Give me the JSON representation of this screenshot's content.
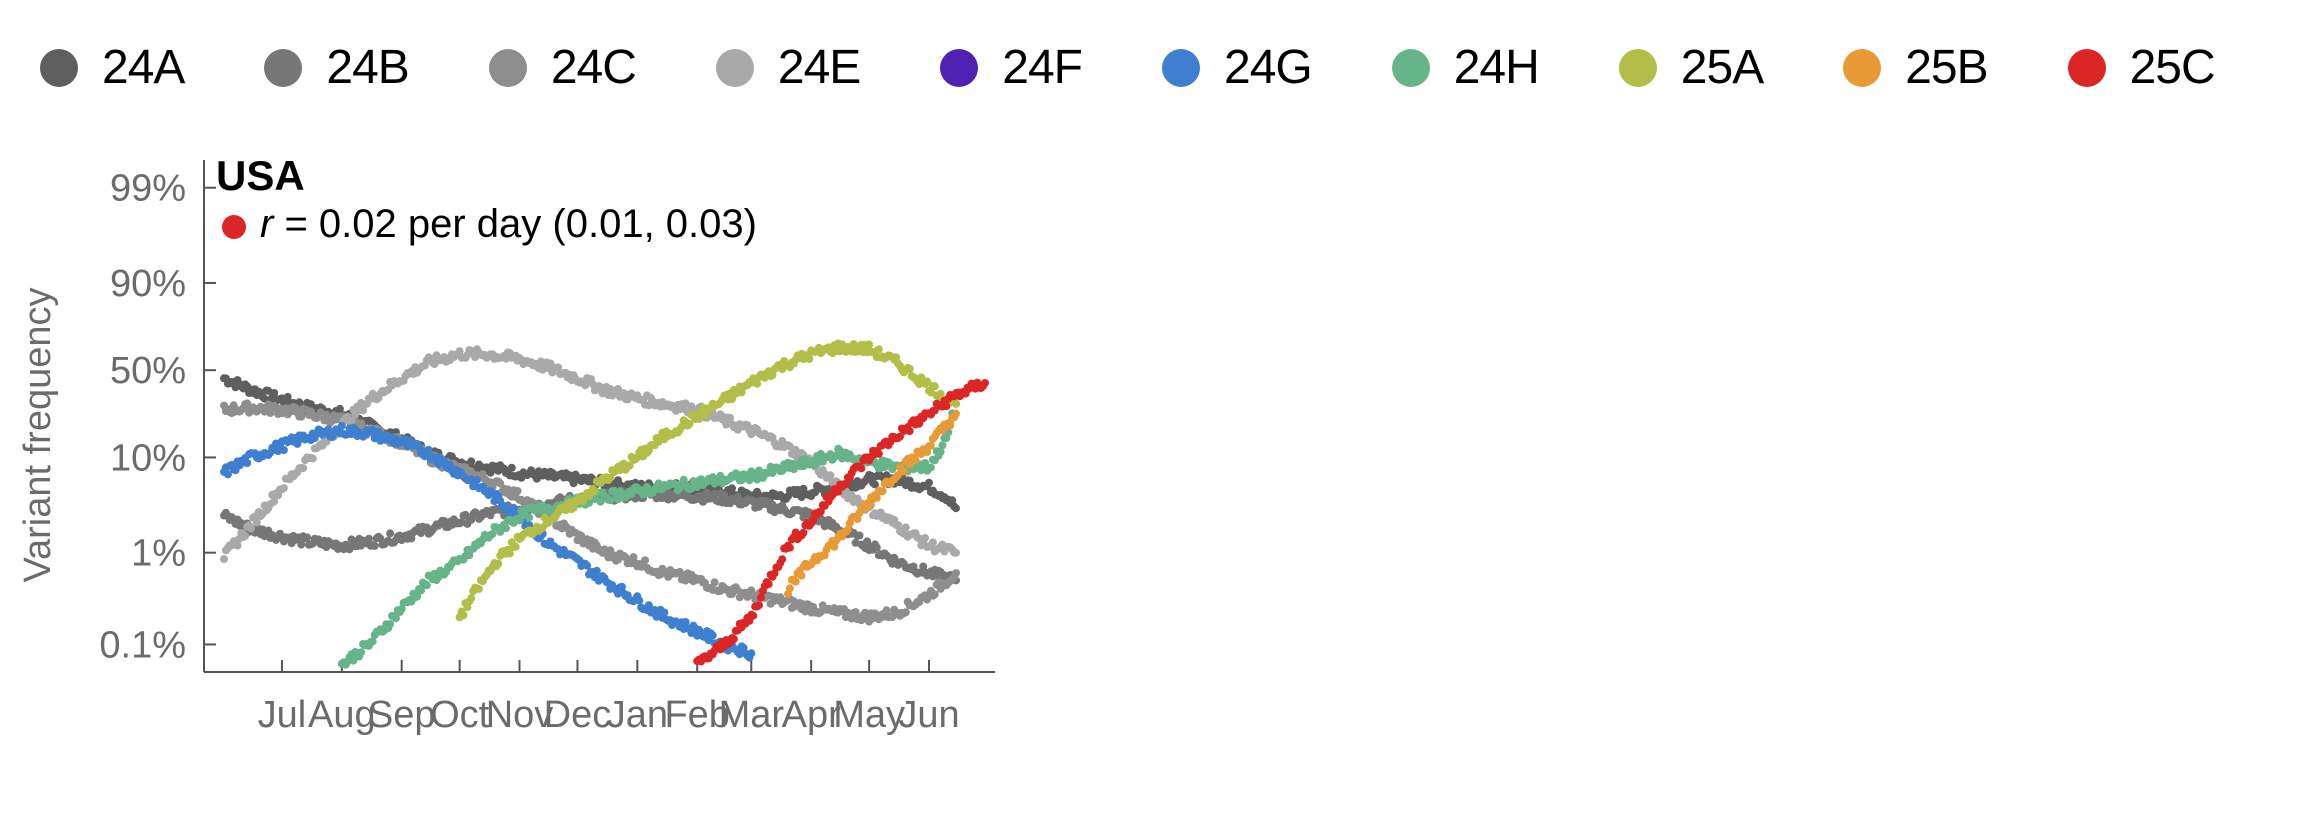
{
  "legend": [
    {
      "label": "24A",
      "color": "#5f5f5f"
    },
    {
      "label": "24B",
      "color": "#777777"
    },
    {
      "label": "24C",
      "color": "#8e8e8e"
    },
    {
      "label": "24E",
      "color": "#a9a9a9"
    },
    {
      "label": "24F",
      "color": "#4f22b4"
    },
    {
      "label": "24G",
      "color": "#3f7fd0"
    },
    {
      "label": "24H",
      "color": "#67b48a"
    },
    {
      "label": "25A",
      "color": "#b2be48"
    },
    {
      "label": "25B",
      "color": "#e89a36"
    },
    {
      "label": "25C",
      "color": "#dc2626"
    }
  ],
  "chart_data": {
    "type": "scatter",
    "title": "USA",
    "annotation": {
      "symbol": "r",
      "text": " = 0.02 per day (0.01, 0.03)",
      "color": "#dc2626"
    },
    "ylabel": "Variant frequency",
    "xlabel": "",
    "y_scale": "logit",
    "y_ticks": [
      {
        "value": 0.001,
        "label": "0.1%"
      },
      {
        "value": 0.01,
        "label": "1%"
      },
      {
        "value": 0.1,
        "label": "10%"
      },
      {
        "value": 0.5,
        "label": "50%"
      },
      {
        "value": 0.9,
        "label": "90%"
      },
      {
        "value": 0.99,
        "label": "99%"
      }
    ],
    "x_ticks": [
      {
        "value": "2024-07-01",
        "label": "Jul"
      },
      {
        "value": "2024-08-01",
        "label": "Aug"
      },
      {
        "value": "2024-09-01",
        "label": "Sep"
      },
      {
        "value": "2024-10-01",
        "label": "Oct"
      },
      {
        "value": "2024-11-01",
        "label": "Nov"
      },
      {
        "value": "2024-12-01",
        "label": "Dec"
      },
      {
        "value": "2025-01-01",
        "label": "Jan"
      },
      {
        "value": "2025-02-01",
        "label": "Feb"
      },
      {
        "value": "2025-03-01",
        "label": "Mar"
      },
      {
        "value": "2025-04-01",
        "label": "Apr"
      },
      {
        "value": "2025-05-01",
        "label": "May"
      },
      {
        "value": "2025-06-01",
        "label": "Jun"
      }
    ],
    "xlim": [
      "2024-06-01",
      "2025-06-30"
    ],
    "ylim": [
      0.0005,
      0.995
    ],
    "grid": false,
    "series": [
      {
        "name": "24A",
        "color": "#5f5f5f",
        "points": [
          [
            "2024-06-01",
            0.45
          ],
          [
            "2024-06-15",
            0.38
          ],
          [
            "2024-07-01",
            0.32
          ],
          [
            "2024-07-15",
            0.28
          ],
          [
            "2024-08-01",
            0.25
          ],
          [
            "2024-08-15",
            0.2
          ],
          [
            "2024-09-01",
            0.15
          ],
          [
            "2024-09-15",
            0.11
          ],
          [
            "2024-10-01",
            0.09
          ],
          [
            "2024-10-15",
            0.08
          ],
          [
            "2024-11-01",
            0.07
          ],
          [
            "2024-11-15",
            0.065
          ],
          [
            "2024-12-01",
            0.06
          ],
          [
            "2024-12-15",
            0.055
          ],
          [
            "2025-01-01",
            0.05
          ],
          [
            "2025-01-15",
            0.05
          ],
          [
            "2025-02-01",
            0.05
          ],
          [
            "2025-02-15",
            0.045
          ],
          [
            "2025-03-01",
            0.04
          ],
          [
            "2025-03-15",
            0.04
          ],
          [
            "2025-04-01",
            0.045
          ],
          [
            "2025-04-15",
            0.05
          ],
          [
            "2025-05-01",
            0.06
          ],
          [
            "2025-05-15",
            0.06
          ],
          [
            "2025-06-01",
            0.05
          ],
          [
            "2025-06-10",
            0.04
          ],
          [
            "2025-06-15",
            0.03
          ]
        ]
      },
      {
        "name": "24B",
        "color": "#777777",
        "points": [
          [
            "2024-06-01",
            0.025
          ],
          [
            "2024-06-15",
            0.018
          ],
          [
            "2024-07-01",
            0.015
          ],
          [
            "2024-07-15",
            0.013
          ],
          [
            "2024-08-01",
            0.012
          ],
          [
            "2024-08-15",
            0.013
          ],
          [
            "2024-09-01",
            0.015
          ],
          [
            "2024-09-15",
            0.018
          ],
          [
            "2024-10-01",
            0.022
          ],
          [
            "2024-10-15",
            0.026
          ],
          [
            "2024-11-01",
            0.03
          ],
          [
            "2024-11-15",
            0.033
          ],
          [
            "2024-12-01",
            0.038
          ],
          [
            "2024-12-15",
            0.04
          ],
          [
            "2025-01-01",
            0.042
          ],
          [
            "2025-01-15",
            0.042
          ],
          [
            "2025-02-01",
            0.04
          ],
          [
            "2025-02-15",
            0.038
          ],
          [
            "2025-03-01",
            0.034
          ],
          [
            "2025-03-15",
            0.03
          ],
          [
            "2025-04-01",
            0.025
          ],
          [
            "2025-04-15",
            0.018
          ],
          [
            "2025-05-01",
            0.012
          ],
          [
            "2025-05-15",
            0.008
          ],
          [
            "2025-06-01",
            0.006
          ],
          [
            "2025-06-15",
            0.005
          ]
        ]
      },
      {
        "name": "24C",
        "color": "#8e8e8e",
        "points": [
          [
            "2024-06-01",
            0.27
          ],
          [
            "2024-06-15",
            0.28
          ],
          [
            "2024-07-01",
            0.27
          ],
          [
            "2024-07-15",
            0.25
          ],
          [
            "2024-08-01",
            0.22
          ],
          [
            "2024-08-15",
            0.18
          ],
          [
            "2024-09-01",
            0.14
          ],
          [
            "2024-09-15",
            0.1
          ],
          [
            "2024-10-01",
            0.075
          ],
          [
            "2024-10-15",
            0.06
          ],
          [
            "2024-11-01",
            0.04
          ],
          [
            "2024-11-15",
            0.025
          ],
          [
            "2024-12-01",
            0.015
          ],
          [
            "2024-12-15",
            0.01
          ],
          [
            "2025-01-01",
            0.008
          ],
          [
            "2025-01-15",
            0.006
          ],
          [
            "2025-02-01",
            0.005
          ],
          [
            "2025-02-15",
            0.004
          ],
          [
            "2025-03-01",
            0.0035
          ],
          [
            "2025-03-15",
            0.003
          ],
          [
            "2025-04-01",
            0.0025
          ],
          [
            "2025-04-15",
            0.0022
          ],
          [
            "2025-05-01",
            0.002
          ],
          [
            "2025-05-15",
            0.0022
          ],
          [
            "2025-06-01",
            0.0035
          ],
          [
            "2025-06-15",
            0.006
          ]
        ]
      },
      {
        "name": "24E",
        "color": "#a9a9a9",
        "points": [
          [
            "2024-06-01",
            0.009
          ],
          [
            "2024-06-15",
            0.02
          ],
          [
            "2024-07-01",
            0.05
          ],
          [
            "2024-07-15",
            0.1
          ],
          [
            "2024-08-01",
            0.2
          ],
          [
            "2024-08-15",
            0.32
          ],
          [
            "2024-09-01",
            0.45
          ],
          [
            "2024-09-15",
            0.55
          ],
          [
            "2024-10-01",
            0.6
          ],
          [
            "2024-10-15",
            0.6
          ],
          [
            "2024-11-01",
            0.57
          ],
          [
            "2024-11-15",
            0.52
          ],
          [
            "2024-12-01",
            0.45
          ],
          [
            "2024-12-15",
            0.38
          ],
          [
            "2025-01-01",
            0.33
          ],
          [
            "2025-01-15",
            0.3
          ],
          [
            "2025-02-01",
            0.27
          ],
          [
            "2025-02-15",
            0.22
          ],
          [
            "2025-03-01",
            0.18
          ],
          [
            "2025-03-15",
            0.14
          ],
          [
            "2025-04-01",
            0.09
          ],
          [
            "2025-04-15",
            0.05
          ],
          [
            "2025-05-01",
            0.03
          ],
          [
            "2025-05-15",
            0.02
          ],
          [
            "2025-06-01",
            0.012
          ],
          [
            "2025-06-15",
            0.01
          ]
        ]
      },
      {
        "name": "24G",
        "color": "#3f7fd0",
        "points": [
          [
            "2024-06-01",
            0.07
          ],
          [
            "2024-06-15",
            0.1
          ],
          [
            "2024-07-01",
            0.13
          ],
          [
            "2024-07-15",
            0.16
          ],
          [
            "2024-08-01",
            0.18
          ],
          [
            "2024-08-15",
            0.17
          ],
          [
            "2024-09-01",
            0.14
          ],
          [
            "2024-09-15",
            0.11
          ],
          [
            "2024-10-01",
            0.07
          ],
          [
            "2024-10-15",
            0.045
          ],
          [
            "2024-11-01",
            0.025
          ],
          [
            "2024-11-15",
            0.013
          ],
          [
            "2024-12-01",
            0.008
          ],
          [
            "2024-12-15",
            0.005
          ],
          [
            "2025-01-01",
            0.003
          ],
          [
            "2025-01-15",
            0.002
          ],
          [
            "2025-02-01",
            0.0014
          ],
          [
            "2025-02-15",
            0.001
          ],
          [
            "2025-03-01",
            0.0008
          ]
        ]
      },
      {
        "name": "24H",
        "color": "#67b48a",
        "points": [
          [
            "2024-08-01",
            0.0006
          ],
          [
            "2024-08-15",
            0.001
          ],
          [
            "2024-09-01",
            0.0025
          ],
          [
            "2024-09-15",
            0.005
          ],
          [
            "2024-10-01",
            0.008
          ],
          [
            "2024-10-15",
            0.015
          ],
          [
            "2024-11-01",
            0.025
          ],
          [
            "2024-11-15",
            0.03
          ],
          [
            "2024-12-01",
            0.035
          ],
          [
            "2024-12-15",
            0.04
          ],
          [
            "2025-01-01",
            0.045
          ],
          [
            "2025-01-15",
            0.05
          ],
          [
            "2025-02-01",
            0.055
          ],
          [
            "2025-02-15",
            0.06
          ],
          [
            "2025-03-01",
            0.065
          ],
          [
            "2025-03-15",
            0.075
          ],
          [
            "2025-04-01",
            0.09
          ],
          [
            "2025-04-15",
            0.11
          ],
          [
            "2025-05-01",
            0.09
          ],
          [
            "2025-05-15",
            0.08
          ],
          [
            "2025-06-01",
            0.08
          ],
          [
            "2025-06-10",
            0.15
          ],
          [
            "2025-06-15",
            0.3
          ]
        ]
      },
      {
        "name": "25A",
        "color": "#b2be48",
        "points": [
          [
            "2024-10-01",
            0.002
          ],
          [
            "2024-10-10",
            0.004
          ],
          [
            "2024-10-20",
            0.008
          ],
          [
            "2024-11-01",
            0.014
          ],
          [
            "2024-11-15",
            0.022
          ],
          [
            "2024-12-01",
            0.035
          ],
          [
            "2024-12-15",
            0.06
          ],
          [
            "2025-01-01",
            0.1
          ],
          [
            "2025-01-15",
            0.16
          ],
          [
            "2025-02-01",
            0.24
          ],
          [
            "2025-02-15",
            0.32
          ],
          [
            "2025-03-01",
            0.42
          ],
          [
            "2025-03-15",
            0.52
          ],
          [
            "2025-04-01",
            0.6
          ],
          [
            "2025-04-15",
            0.64
          ],
          [
            "2025-05-01",
            0.63
          ],
          [
            "2025-05-15",
            0.55
          ],
          [
            "2025-06-01",
            0.4
          ],
          [
            "2025-06-15",
            0.3
          ]
        ]
      },
      {
        "name": "25B",
        "color": "#e89a36",
        "points": [
          [
            "2025-03-20",
            0.004
          ],
          [
            "2025-04-01",
            0.008
          ],
          [
            "2025-04-15",
            0.014
          ],
          [
            "2025-05-01",
            0.035
          ],
          [
            "2025-05-15",
            0.07
          ],
          [
            "2025-06-01",
            0.13
          ],
          [
            "2025-06-10",
            0.2
          ],
          [
            "2025-06-15",
            0.25
          ]
        ]
      },
      {
        "name": "25C",
        "color": "#dc2626",
        "points": [
          [
            "2025-02-01",
            0.0006
          ],
          [
            "2025-02-15",
            0.001
          ],
          [
            "2025-03-01",
            0.002
          ],
          [
            "2025-03-10",
            0.005
          ],
          [
            "2025-03-20",
            0.012
          ],
          [
            "2025-04-01",
            0.022
          ],
          [
            "2025-04-15",
            0.05
          ],
          [
            "2025-05-01",
            0.1
          ],
          [
            "2025-05-15",
            0.16
          ],
          [
            "2025-06-01",
            0.25
          ],
          [
            "2025-06-15",
            0.35
          ],
          [
            "2025-06-30",
            0.42
          ]
        ]
      }
    ]
  }
}
